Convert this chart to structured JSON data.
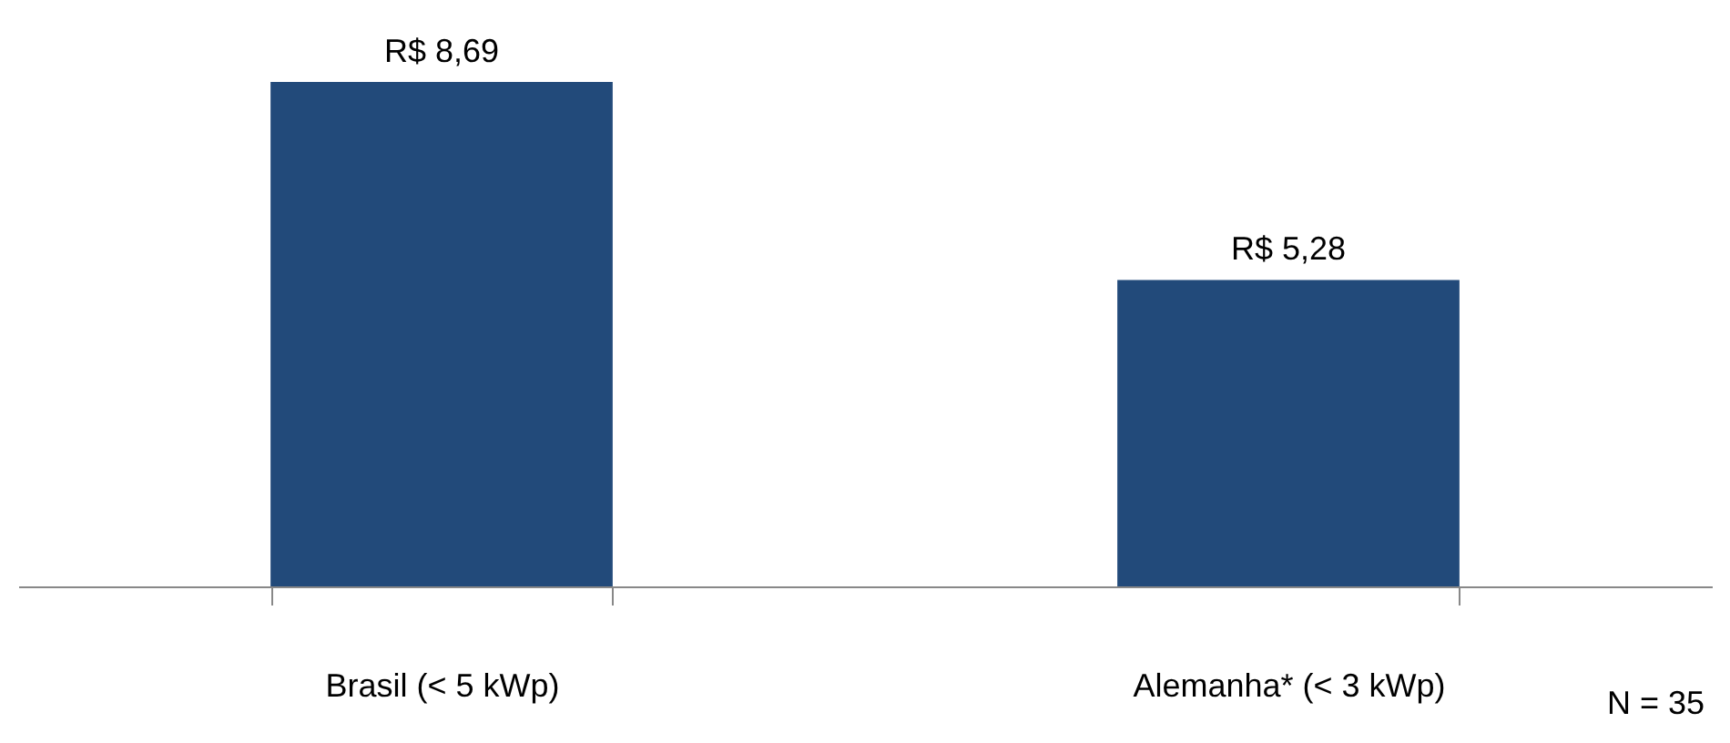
{
  "chart_data": {
    "type": "bar",
    "categories": [
      "Brasil (< 5 kWp)",
      "Alemanha* (< 3 kWp)"
    ],
    "values": [
      8.69,
      5.28
    ],
    "value_labels": [
      "R$ 8,69",
      "R$ 5,28"
    ],
    "color": "#224a7a",
    "annotations": [
      "N = 35"
    ]
  }
}
